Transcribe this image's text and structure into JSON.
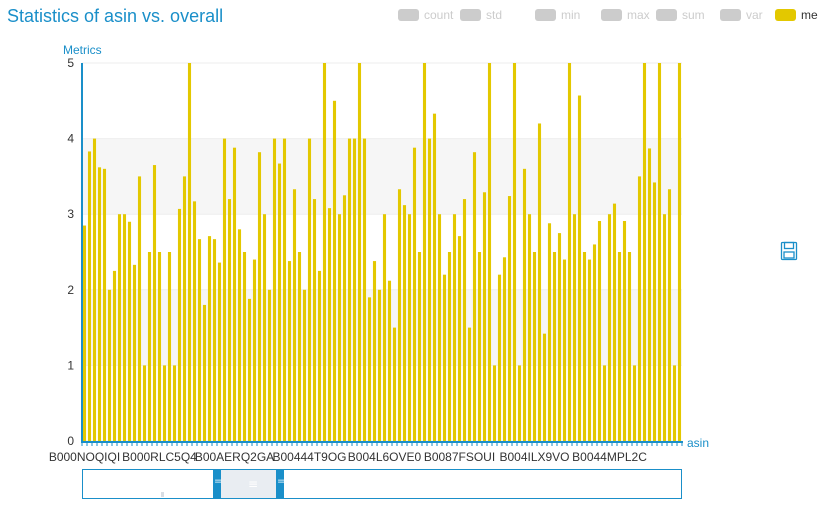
{
  "title": "Statistics of asin vs. overall",
  "legend": [
    {
      "label": "count",
      "active": false
    },
    {
      "label": "std",
      "active": false
    },
    {
      "label": "min",
      "active": false
    },
    {
      "label": "max",
      "active": false
    },
    {
      "label": "sum",
      "active": false
    },
    {
      "label": "var",
      "active": false
    },
    {
      "label": "mean",
      "active": true
    }
  ],
  "colors": {
    "active": "#e3c800",
    "inactive": "#cccccc",
    "accent": "#1a8fc9",
    "axis_text": "#333333"
  },
  "icons": {
    "save": "save-icon"
  },
  "chart_data": {
    "type": "bar",
    "title": "Statistics of asin vs. overall",
    "xlabel": "asin",
    "ylabel": "Metrics",
    "ylim": [
      0,
      5
    ],
    "yticks": [
      0,
      1,
      2,
      3,
      4,
      5
    ],
    "x_tick_labels": [
      "B000NOQIQI",
      "B000RLC5Q4",
      "B00AERQ2GA",
      "B00444T9OG",
      "B004L6OVE0",
      "B0087FSOUI",
      "B004ILX9VO",
      "B0044MPL2C"
    ],
    "grid": true,
    "legend_position": "top-right",
    "series": [
      {
        "name": "mean",
        "values": [
          2.85,
          3.83,
          4.0,
          3.62,
          3.6,
          2.0,
          2.25,
          3.0,
          3.0,
          2.9,
          2.33,
          3.5,
          1.0,
          2.5,
          3.65,
          2.5,
          1.0,
          2.5,
          1.0,
          3.07,
          3.5,
          5.0,
          3.17,
          2.67,
          1.8,
          2.71,
          2.67,
          2.36,
          4.0,
          3.2,
          3.88,
          2.8,
          2.5,
          1.88,
          2.4,
          3.82,
          3.0,
          2.0,
          4.0,
          3.67,
          4.0,
          2.38,
          3.33,
          2.5,
          2.0,
          4.0,
          3.2,
          2.25,
          5.0,
          3.08,
          4.5,
          3.0,
          3.25,
          4.0,
          4.0,
          5.0,
          4.0,
          1.9,
          2.38,
          2.0,
          3.0,
          2.12,
          1.5,
          3.33,
          3.12,
          3.0,
          3.88,
          2.5,
          5.0,
          4.0,
          4.33,
          3.0,
          2.2,
          2.5,
          3.0,
          2.71,
          3.2,
          1.5,
          3.82,
          2.5,
          3.29,
          5.0,
          1.0,
          2.2,
          2.43,
          3.24,
          5.0,
          1.0,
          3.6,
          3.0,
          2.5,
          4.2,
          1.42,
          2.88,
          2.5,
          2.75,
          2.4,
          5.0,
          3.0,
          4.57,
          2.5,
          2.4,
          2.6,
          2.91,
          1.0,
          3.0,
          3.14,
          2.5,
          2.91,
          2.5,
          1.0,
          3.5,
          5.0,
          3.87,
          3.42,
          5.0,
          3.0,
          3.33,
          1.0,
          5.0
        ]
      }
    ]
  }
}
